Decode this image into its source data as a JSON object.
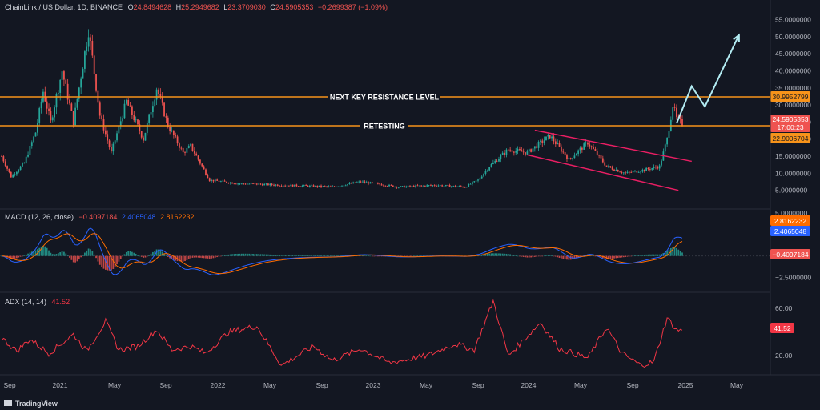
{
  "header": {
    "symbol": "ChainLink / US Dollar, 1D, BINANCE",
    "o_label": "O",
    "o_value": "24.8494628",
    "h_label": "H",
    "h_value": "25.2949682",
    "l_label": "L",
    "l_value": "23.3709030",
    "c_label": "C",
    "c_value": "24.5905353",
    "change": "−0.2699387 (−1.09%)"
  },
  "macd_legend": {
    "label": "MACD (12, 26, close)",
    "v1": "−0.4097184",
    "v2": "2.4065048",
    "v3": "2.8162232"
  },
  "adx_legend": {
    "label": "ADX (14, 14)",
    "value": "41.52"
  },
  "annotations": {
    "resistance": "NEXT KEY RESISTANCE LEVEL",
    "retesting": "RETESTING"
  },
  "price_badges": {
    "resistance": "30.9952799",
    "last": "24.5905353",
    "countdown": "17:00:23",
    "support": "22.9006704"
  },
  "macd_badges": {
    "signal": "2.8162232",
    "macd": "2.4065048",
    "hist": "−0.4097184"
  },
  "adx_badge": "41.52",
  "logo": "TradingView",
  "colors": {
    "bg": "#131722",
    "up": "#26a69a",
    "down": "#ef5350",
    "orange": "#f7931a",
    "pink": "#e91e63",
    "macd": "#2962ff",
    "signal": "#ff6d00",
    "adx": "#f23645",
    "projection": "#b2ebf2"
  },
  "chart_data": [
    {
      "type": "candlestick",
      "price_axis_ticks": [
        "55.0000000",
        "50.0000000",
        "45.0000000",
        "40.0000000",
        "35.0000000",
        "30.0000000",
        "25.0000000",
        "20.0000000",
        "15.0000000",
        "10.0000000",
        "5.0000000"
      ],
      "x_tick_labels": [
        "Sep",
        "2021",
        "May",
        "Sep",
        "2022",
        "May",
        "Sep",
        "2023",
        "May",
        "Sep",
        "2024",
        "May",
        "Sep",
        "2025",
        "May"
      ],
      "ylim": [
        0,
        57
      ],
      "resistance_level": 31.0,
      "retest_level": 24.6,
      "key_prices": [
        [
          0,
          15
        ],
        [
          5,
          9
        ],
        [
          12,
          13
        ],
        [
          18,
          22
        ],
        [
          22,
          34
        ],
        [
          26,
          25
        ],
        [
          32,
          40
        ],
        [
          38,
          25
        ],
        [
          46,
          52
        ],
        [
          52,
          27
        ],
        [
          58,
          16
        ],
        [
          66,
          31
        ],
        [
          75,
          20
        ],
        [
          82,
          35
        ],
        [
          88,
          24
        ],
        [
          96,
          16
        ],
        [
          100,
          18
        ],
        [
          110,
          8
        ],
        [
          125,
          7
        ],
        [
          150,
          6.5
        ],
        [
          175,
          6
        ],
        [
          190,
          7.5
        ],
        [
          210,
          6
        ],
        [
          230,
          6.5
        ],
        [
          245,
          6
        ],
        [
          252,
          8
        ],
        [
          258,
          12
        ],
        [
          268,
          17
        ],
        [
          278,
          16
        ],
        [
          290,
          21
        ],
        [
          300,
          14
        ],
        [
          310,
          19
        ],
        [
          320,
          12
        ],
        [
          330,
          10
        ],
        [
          340,
          11
        ],
        [
          348,
          12
        ],
        [
          352,
          20
        ],
        [
          355,
          30
        ],
        [
          357,
          26
        ],
        [
          360,
          24.6
        ]
      ],
      "channel_upper": [
        [
          282,
          22.6
        ],
        [
          365,
          13.5
        ]
      ],
      "channel_lower": [
        [
          278,
          15.4
        ],
        [
          358,
          5.0
        ]
      ],
      "projection": [
        [
          357,
          24.6
        ],
        [
          365,
          35.5
        ],
        [
          372,
          29.5
        ],
        [
          390,
          50.5
        ]
      ]
    },
    {
      "type": "line",
      "name": "MACD (12, 26, close)",
      "ylim": [
        -3.3,
        5.2
      ],
      "y_tick_labels": [
        "5.0000000",
        "−2.5000000"
      ],
      "last_values": {
        "macd": 2.4065048,
        "signal": 2.8162232,
        "histogram": -0.4097184
      }
    },
    {
      "type": "line",
      "name": "ADX (14, 14)",
      "ylim": [
        8,
        70
      ],
      "y_tick_labels": [
        "60.00",
        "20.00"
      ],
      "key_values": [
        [
          0,
          35
        ],
        [
          8,
          24
        ],
        [
          15,
          34
        ],
        [
          25,
          22
        ],
        [
          38,
          38
        ],
        [
          45,
          24
        ],
        [
          55,
          49
        ],
        [
          62,
          25
        ],
        [
          72,
          28
        ],
        [
          82,
          42
        ],
        [
          90,
          25
        ],
        [
          100,
          28
        ],
        [
          108,
          22
        ],
        [
          120,
          40
        ],
        [
          135,
          45
        ],
        [
          148,
          12
        ],
        [
          165,
          28
        ],
        [
          175,
          16
        ],
        [
          190,
          26
        ],
        [
          205,
          14
        ],
        [
          225,
          20
        ],
        [
          240,
          30
        ],
        [
          250,
          25
        ],
        [
          260,
          66
        ],
        [
          268,
          20
        ],
        [
          285,
          48
        ],
        [
          295,
          26
        ],
        [
          310,
          18
        ],
        [
          320,
          44
        ],
        [
          328,
          22
        ],
        [
          338,
          12
        ],
        [
          345,
          15
        ],
        [
          352,
          52
        ],
        [
          357,
          41.52
        ]
      ],
      "last_value": 41.52
    }
  ]
}
